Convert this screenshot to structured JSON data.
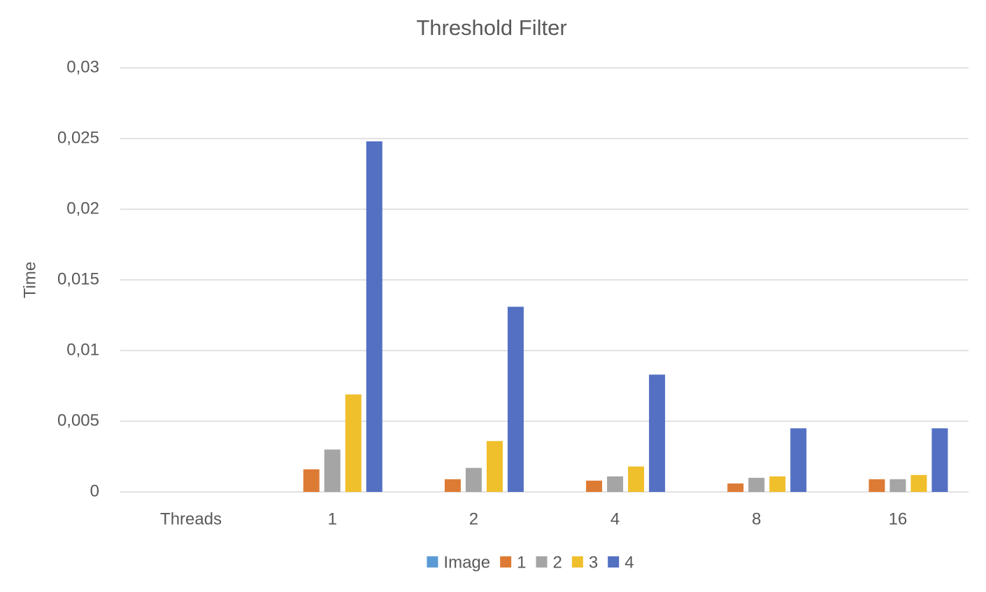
{
  "chart_data": {
    "type": "bar",
    "title": "Threshold Filter",
    "y_label": "Time",
    "categories": [
      "Threads",
      "1",
      "2",
      "4",
      "8",
      "16"
    ],
    "series": [
      {
        "name": "Image",
        "color": "#5b9bd5",
        "values": [
          null,
          null,
          null,
          null,
          null,
          null
        ]
      },
      {
        "name": "1",
        "color": "#dd7b35",
        "values": [
          null,
          0.0016,
          0.0009,
          0.0008,
          0.0006,
          0.0009
        ]
      },
      {
        "name": "2",
        "color": "#a5a5a5",
        "values": [
          null,
          0.003,
          0.0017,
          0.0011,
          0.001,
          0.0009
        ]
      },
      {
        "name": "3",
        "color": "#f0bf2c",
        "values": [
          null,
          0.0069,
          0.0036,
          0.0018,
          0.0011,
          0.0012
        ]
      },
      {
        "name": "4",
        "color": "#5370c2",
        "values": [
          null,
          0.0248,
          0.0131,
          0.0083,
          0.0045,
          0.0045
        ]
      }
    ],
    "ylim": [
      0,
      0.03
    ],
    "yticks": [
      0,
      {
        "value": 0.005,
        "label": "0,005"
      },
      {
        "value": 0.01,
        "label": "0,01"
      },
      {
        "value": 0.015,
        "label": "0,015"
      },
      {
        "value": 0.02,
        "label": "0,02"
      },
      {
        "value": 0.025,
        "label": "0,025"
      },
      {
        "value": 0.03,
        "label": "0,03"
      }
    ],
    "grid": true,
    "legend": "bottom"
  }
}
